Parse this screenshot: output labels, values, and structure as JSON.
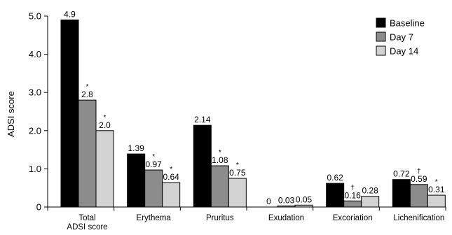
{
  "chart_data": {
    "type": "bar",
    "title": "",
    "xlabel": "",
    "ylabel": "ADSI score",
    "ylim": [
      0,
      5.0
    ],
    "yticks": [
      "0",
      "1.0",
      "2.0",
      "3.0",
      "4.0",
      "5.0"
    ],
    "grid": false,
    "legend_position": "top-right",
    "categories": [
      [
        "Total",
        "ADSI score"
      ],
      [
        "Erythema"
      ],
      [
        "Pruritus"
      ],
      [
        "Exudation"
      ],
      [
        "Excoriation"
      ],
      [
        "Lichenification"
      ]
    ],
    "series": [
      {
        "name": "Baseline",
        "color": "#000000",
        "values": [
          4.9,
          1.39,
          2.14,
          0,
          0.62,
          0.72
        ],
        "labels": [
          "4.9",
          "1.39",
          "2.14",
          "0",
          "0.62",
          "0.72"
        ],
        "marks": [
          "",
          "",
          "",
          "",
          "",
          ""
        ]
      },
      {
        "name": "Day 7",
        "color": "#8c8c8c",
        "values": [
          2.8,
          0.97,
          1.08,
          0.03,
          0.16,
          0.59
        ],
        "labels": [
          "2.8",
          "0.97",
          "1.08",
          "0.03",
          "0.16",
          "0.59"
        ],
        "marks": [
          "*",
          "*",
          "*",
          "",
          "†",
          "†"
        ]
      },
      {
        "name": "Day 14",
        "color": "#d3d3d3",
        "values": [
          2.0,
          0.64,
          0.75,
          0.05,
          0.28,
          0.31
        ],
        "labels": [
          "2.0",
          "0.64",
          "0.75",
          "0.05",
          "0.28",
          "0.31"
        ],
        "marks": [
          "*",
          "*",
          "*",
          "",
          "",
          "*"
        ]
      }
    ]
  }
}
